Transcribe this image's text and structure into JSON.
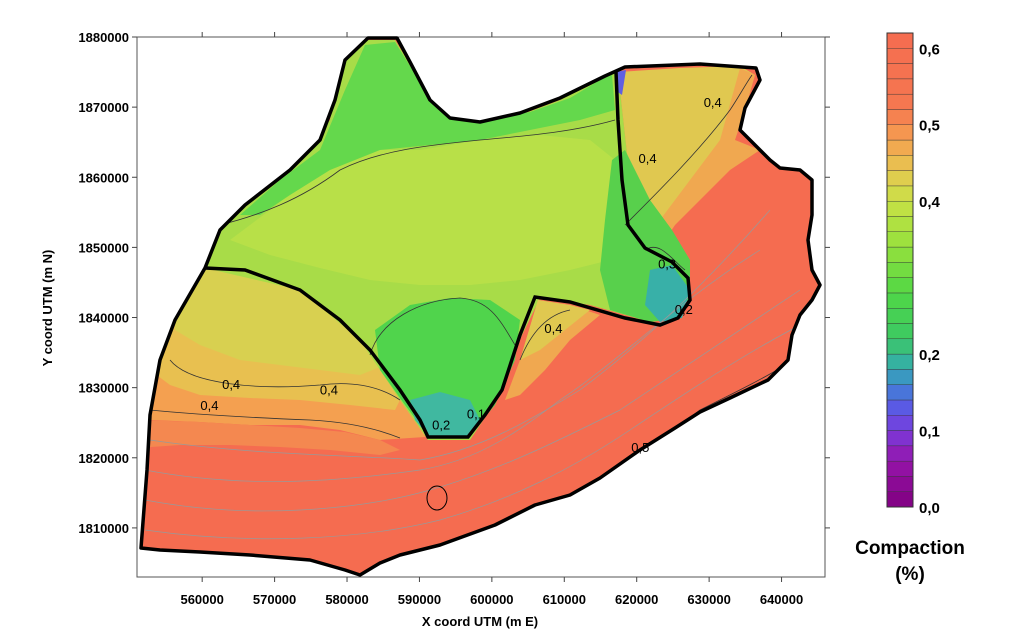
{
  "chart_data": {
    "type": "heatmap",
    "subtype": "filled-contour-map",
    "xlabel": "X coord UTM (m E)",
    "ylabel": "Y coord UTM (m N)",
    "xlim": [
      551000,
      646000
    ],
    "ylim": [
      1803000,
      1880000
    ],
    "x_ticks": [
      "560000",
      "570000",
      "580000",
      "590000",
      "600000",
      "610000",
      "620000",
      "630000",
      "640000"
    ],
    "x_tick_values": [
      560000,
      570000,
      580000,
      590000,
      600000,
      610000,
      620000,
      630000,
      640000
    ],
    "y_ticks": [
      "1880000",
      "1870000",
      "1860000",
      "1850000",
      "1840000",
      "1830000",
      "1820000",
      "1810000"
    ],
    "y_tick_values": [
      1880000,
      1870000,
      1860000,
      1850000,
      1840000,
      1830000,
      1820000,
      1810000
    ],
    "colorbar": {
      "title_line1": "Compaction",
      "title_line2": "(%)",
      "range": [
        0.0,
        0.62
      ],
      "labels": [
        "0,6",
        "0,5",
        "0,4",
        "0,2",
        "0,1",
        "0,0"
      ],
      "label_values": [
        0.6,
        0.5,
        0.4,
        0.2,
        0.1,
        0.0
      ],
      "levels": 31
    },
    "contour_labels": [
      {
        "text": "0,4",
        "x": 564000,
        "y": 1829800
      },
      {
        "text": "0,4",
        "x": 577500,
        "y": 1829000
      },
      {
        "text": "0,4",
        "x": 561000,
        "y": 1826800
      },
      {
        "text": "0,2",
        "x": 593000,
        "y": 1824000
      },
      {
        "text": "0,1",
        "x": 597800,
        "y": 1825600
      },
      {
        "text": "0,4",
        "x": 608500,
        "y": 1837800
      },
      {
        "text": "0,5",
        "x": 620500,
        "y": 1820800
      },
      {
        "text": "0,4",
        "x": 621500,
        "y": 1862000
      },
      {
        "text": "0,4",
        "x": 630500,
        "y": 1870000
      },
      {
        "text": "0,2",
        "x": 626500,
        "y": 1840500
      },
      {
        "text": "0,3",
        "x": 624200,
        "y": 1847000
      }
    ],
    "colors": {
      "high": "#f56c50",
      "mid_high": "#e8c050",
      "mid": "#c8e050",
      "low_mid": "#4cd850",
      "low": "#30a0b0",
      "very_low": "#7040c0",
      "zero": "#800080"
    },
    "grid": false,
    "legend": "colorbar-right"
  }
}
